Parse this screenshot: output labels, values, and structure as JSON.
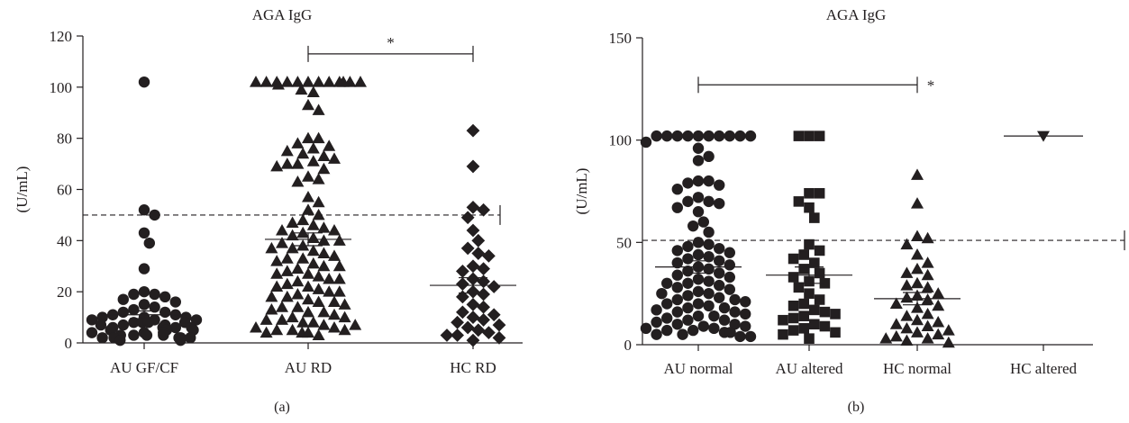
{
  "chart_data": [
    {
      "type": "scatter",
      "panel_label": "(a)",
      "title": "AGA IgG",
      "ylabel": "(U/mL)",
      "ylim": [
        0,
        120
      ],
      "yticks": [
        0,
        20,
        40,
        60,
        80,
        100,
        120
      ],
      "cutoff": 50,
      "categories": [
        "AU GF/CF",
        "AU RD",
        "HC RD"
      ],
      "groups": [
        {
          "name": "AU GF/CF",
          "marker": "circle",
          "mean": 11,
          "sem": 1.5,
          "values": [
            102,
            52,
            50,
            43,
            39,
            29,
            20,
            19,
            19,
            18,
            17,
            16,
            15,
            14,
            13,
            12,
            12,
            11,
            11,
            10,
            10,
            10,
            9,
            9,
            9,
            8,
            8,
            8,
            8,
            7,
            7,
            7,
            6,
            6,
            6,
            6,
            5,
            5,
            5,
            5,
            4,
            4,
            4,
            3,
            3,
            3,
            3,
            2,
            2,
            2,
            2,
            2,
            1,
            1
          ]
        },
        {
          "name": "AU RD",
          "marker": "triangle-up",
          "mean": 40.5,
          "sem": 2.5,
          "values": [
            102,
            102,
            102,
            102,
            102,
            102,
            102,
            102,
            102,
            102,
            102,
            102,
            101,
            99,
            98,
            93,
            91,
            80,
            80,
            78,
            77,
            76,
            75,
            74,
            73,
            72,
            71,
            70,
            70,
            69,
            68,
            65,
            64,
            63,
            57,
            55,
            52,
            50,
            48,
            47,
            46,
            45,
            44,
            44,
            43,
            42,
            41,
            40,
            40,
            39,
            38,
            37,
            37,
            36,
            35,
            34,
            33,
            33,
            32,
            31,
            30,
            30,
            29,
            28,
            27,
            27,
            26,
            25,
            25,
            24,
            23,
            22,
            22,
            21,
            20,
            20,
            19,
            18,
            18,
            17,
            16,
            16,
            15,
            14,
            14,
            13,
            12,
            12,
            11,
            10,
            10,
            9,
            9,
            8,
            8,
            7,
            7,
            6,
            6,
            5,
            5,
            5,
            4,
            4,
            4,
            3
          ]
        },
        {
          "name": "HC RD",
          "marker": "diamond",
          "mean": 22.5,
          "sem": 3,
          "values": [
            83,
            69,
            53,
            52,
            49,
            44,
            40,
            37,
            35,
            34,
            30,
            29,
            28,
            25,
            24,
            23,
            22,
            20,
            19,
            18,
            15,
            14,
            12,
            11,
            10,
            9,
            8,
            7,
            6,
            5,
            4,
            3,
            3,
            2,
            1
          ]
        }
      ],
      "significance": [
        {
          "from": "AU RD",
          "to": "HC RD",
          "label": "*",
          "y": 113
        }
      ]
    },
    {
      "type": "scatter",
      "panel_label": "(b)",
      "title": "AGA IgG",
      "ylabel": "(U/mL)",
      "ylim": [
        0,
        150
      ],
      "yticks": [
        0,
        50,
        100,
        150
      ],
      "cutoff": 51,
      "categories": [
        "AU normal",
        "AU altered",
        "HC normal",
        "HC altered"
      ],
      "groups": [
        {
          "name": "AU normal",
          "marker": "circle",
          "mean": 38,
          "sem": 3,
          "values": [
            102,
            102,
            102,
            102,
            102,
            102,
            102,
            102,
            102,
            102,
            99,
            96,
            92,
            90,
            80,
            80,
            79,
            78,
            76,
            72,
            70,
            70,
            69,
            67,
            65,
            60,
            58,
            55,
            50,
            49,
            48,
            47,
            46,
            45,
            44,
            43,
            42,
            41,
            40,
            39,
            38,
            37,
            36,
            35,
            34,
            33,
            32,
            31,
            30,
            30,
            29,
            28,
            27,
            26,
            25,
            25,
            24,
            23,
            22,
            22,
            21,
            20,
            20,
            19,
            18,
            18,
            17,
            16,
            16,
            15,
            14,
            14,
            13,
            12,
            12,
            11,
            10,
            10,
            9,
            9,
            8,
            8,
            7,
            7,
            6,
            6,
            5,
            5,
            4,
            4
          ]
        },
        {
          "name": "AU altered",
          "marker": "square",
          "mean": 34,
          "sem": 4,
          "values": [
            102,
            102,
            102,
            74,
            74,
            70,
            67,
            62,
            49,
            46,
            44,
            42,
            40,
            37,
            35,
            33,
            31,
            30,
            28,
            25,
            22,
            20,
            19,
            17,
            16,
            15,
            14,
            13,
            12,
            10,
            9,
            8,
            7,
            6,
            5,
            3
          ]
        },
        {
          "name": "HC normal",
          "marker": "triangle-up",
          "mean": 22.5,
          "sem": 3,
          "values": [
            83,
            69,
            53,
            52,
            49,
            44,
            40,
            37,
            35,
            34,
            30,
            29,
            28,
            25,
            24,
            23,
            22,
            20,
            19,
            18,
            15,
            14,
            12,
            11,
            10,
            9,
            8,
            7,
            6,
            5,
            4,
            3,
            3,
            2,
            1
          ]
        },
        {
          "name": "HC altered",
          "marker": "triangle-down",
          "mean": 102,
          "sem": 0,
          "values": [
            102
          ]
        }
      ],
      "significance": [
        {
          "from": "AU normal",
          "to": "HC normal",
          "label": "*",
          "y": 127
        }
      ]
    }
  ]
}
